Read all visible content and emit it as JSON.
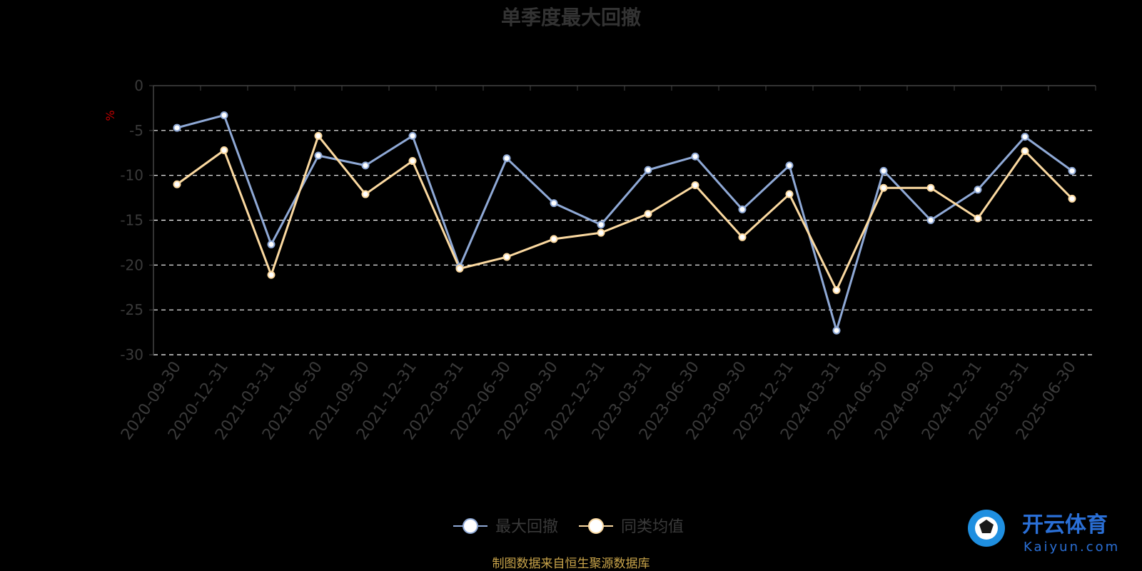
{
  "chart_data": {
    "type": "line",
    "title": "单季度最大回撤",
    "ylabel": "%",
    "xlabel": "",
    "ylim": [
      -30,
      0
    ],
    "yticks": [
      0,
      -5,
      -10,
      -15,
      -20,
      -25,
      -30
    ],
    "grid": true,
    "legend_position": "bottom",
    "categories": [
      "2020-09-30",
      "2020-12-31",
      "2021-03-31",
      "2021-06-30",
      "2021-09-30",
      "2021-12-31",
      "2022-03-31",
      "2022-06-30",
      "2022-09-30",
      "2022-12-31",
      "2023-03-31",
      "2023-06-30",
      "2023-09-30",
      "2023-12-31",
      "2024-03-31",
      "2024-06-30",
      "2024-09-30",
      "2024-12-31",
      "2025-03-31",
      "2025-06-30"
    ],
    "series": [
      {
        "name": "最大回撤",
        "color": "#8fa9d6",
        "values": [
          -4.7,
          -3.3,
          -17.7,
          -7.8,
          -8.9,
          -5.6,
          -20.2,
          -8.1,
          -13.1,
          -15.5,
          -9.4,
          -7.9,
          -13.8,
          -8.9,
          -27.3,
          -9.5,
          -15.0,
          -11.6,
          -5.7,
          -9.5
        ]
      },
      {
        "name": "同类均值",
        "color": "#fbd9a0",
        "values": [
          -11.0,
          -7.2,
          -21.1,
          -5.6,
          -12.1,
          -8.4,
          -20.4,
          -19.1,
          -17.1,
          -16.4,
          -14.3,
          -11.1,
          -16.9,
          -12.1,
          -22.8,
          -11.4,
          -11.4,
          -14.8,
          -7.3,
          -12.6
        ]
      }
    ]
  },
  "source_note": "制图数据来自恒生聚源数据库",
  "watermark": {
    "name": "开云体育",
    "domain": "Kaiyun.com"
  }
}
